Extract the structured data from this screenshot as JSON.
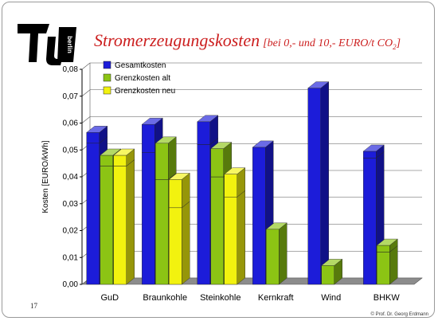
{
  "slide": {
    "title_main": "Stromerzeugungskosten",
    "title_sub_prefix": "[bei 0,- und 10,- EURO/t CO",
    "title_sub_subscript": "2",
    "title_sub_suffix": "]",
    "logo_text": "berlin",
    "number": "17",
    "copyright": "© Prof. Dr. Georg Erdmann"
  },
  "colors": {
    "title": "#cc1f1f",
    "gesamt": "#1c1cd9",
    "alt": "#8cc414",
    "neu": "#f2f20f",
    "floor": "#8c8c8c"
  },
  "chart_data": {
    "type": "bar",
    "ylabel": "Kosten [EURO/kWh]",
    "xlabel": "",
    "ylim": [
      0,
      0.08
    ],
    "ytick_step": 0.01,
    "yticks": [
      "0,00",
      "0,01",
      "0,02",
      "0,03",
      "0,04",
      "0,05",
      "0,06",
      "0,07",
      "0,08"
    ],
    "grid": true,
    "legend_position": "top-left",
    "categories": [
      "GuD",
      "Braunkohle",
      "Steinkohle",
      "Kernkraft",
      "Wind",
      "BHKW"
    ],
    "series": [
      {
        "name": "Gesamtkosten",
        "color": "#1c1cd9",
        "stacks": [
          [
            0.0525,
            0.004
          ],
          [
            0.049,
            0.0105
          ],
          [
            0.052,
            0.0085
          ],
          [
            0.051,
            0.0
          ],
          [
            0.073,
            0.0
          ],
          [
            0.047,
            0.0025
          ]
        ]
      },
      {
        "name": "Grenzkosten alt",
        "color": "#8cc414",
        "stacks": [
          [
            0.044,
            0.004
          ],
          [
            0.039,
            0.0135
          ],
          [
            0.04,
            0.0105
          ],
          [
            0.0205,
            0.0
          ],
          [
            0.007,
            0.0
          ],
          [
            0.012,
            0.0025
          ]
        ]
      },
      {
        "name": "Grenzkosten neu",
        "color": "#f2f20f",
        "stacks": [
          [
            0.044,
            0.004
          ],
          [
            0.0285,
            0.0105
          ],
          [
            0.0325,
            0.0085
          ],
          [
            null,
            null
          ],
          [
            null,
            null
          ],
          [
            null,
            null
          ]
        ]
      }
    ]
  }
}
